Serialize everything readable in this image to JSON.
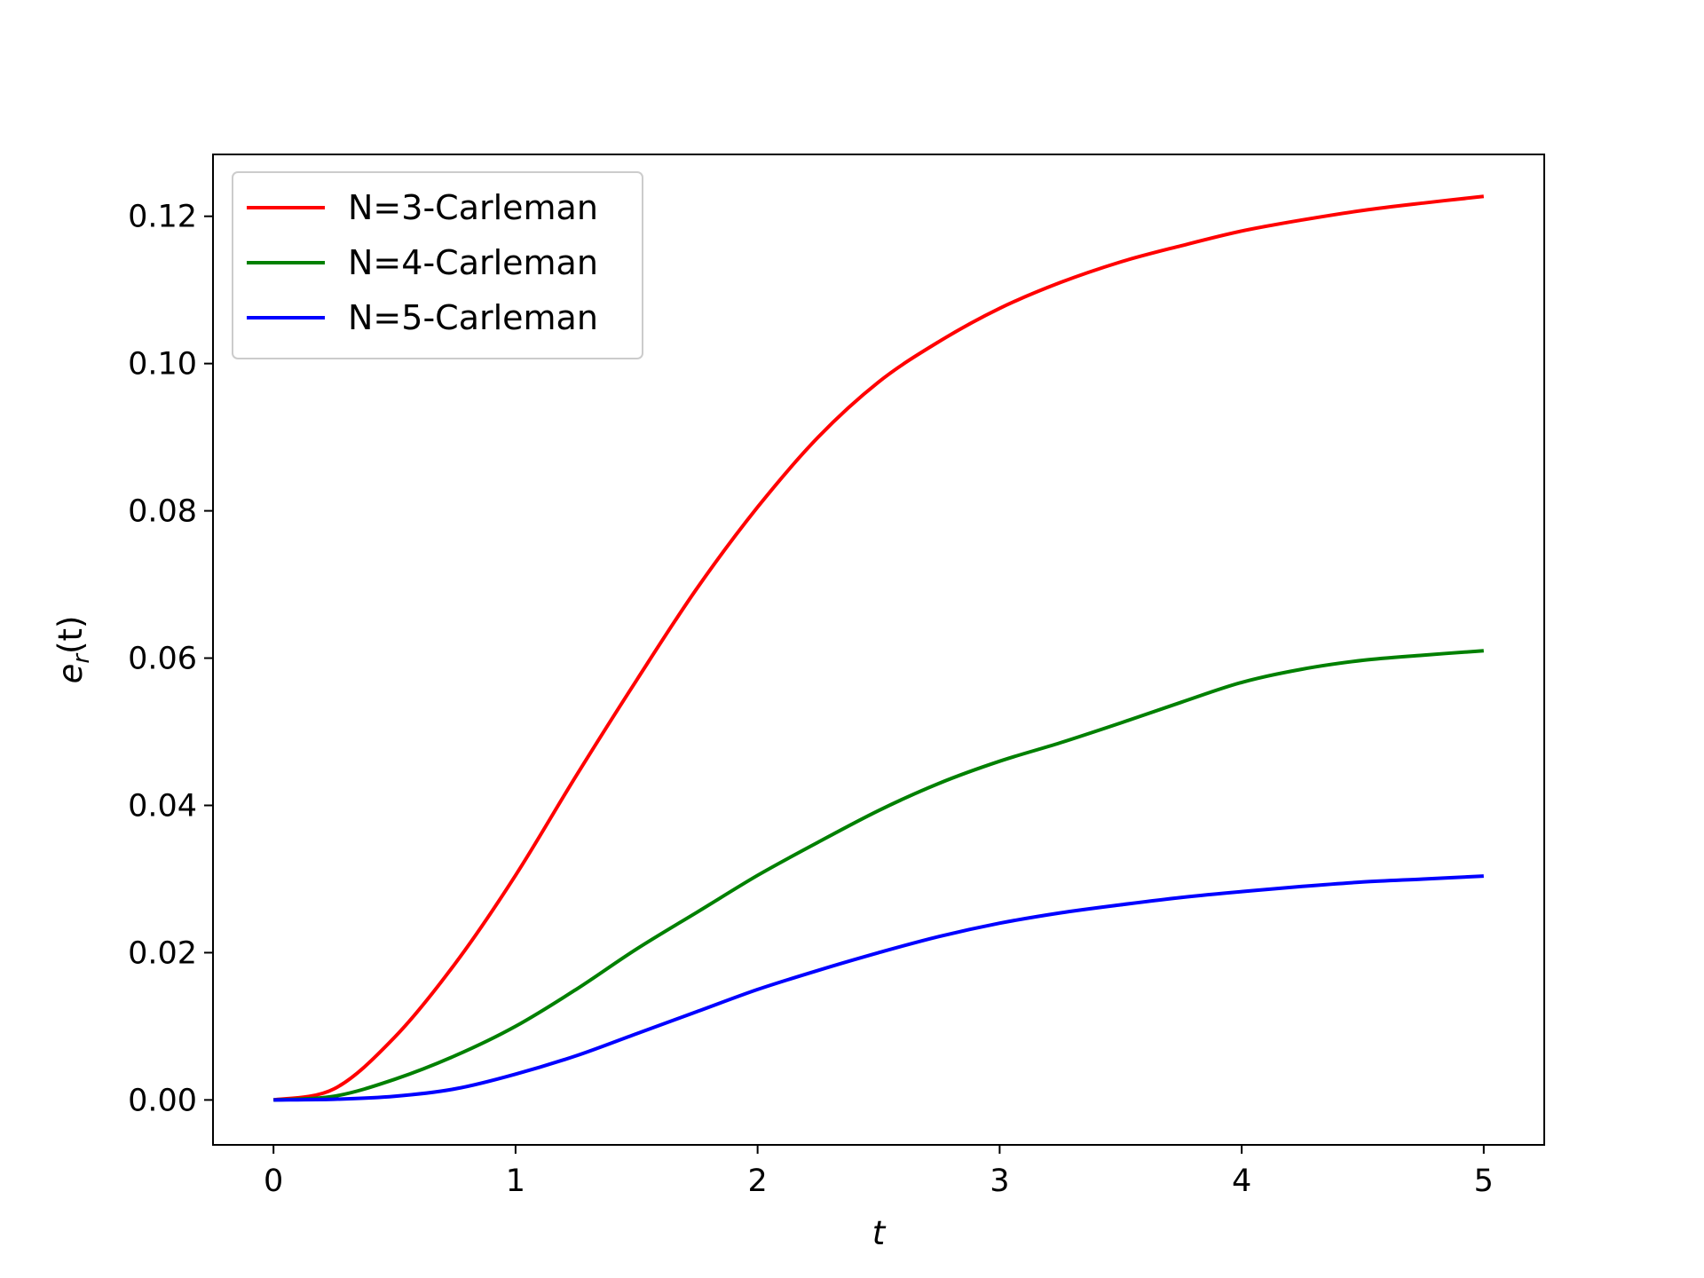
{
  "chart_data": {
    "type": "line",
    "title": "",
    "xlabel": "t",
    "ylabel": {
      "base": "e",
      "sub": "r",
      "rest": "(t)"
    },
    "xlim": [
      -0.25,
      5.25
    ],
    "ylim": [
      -0.0061,
      0.1284
    ],
    "xticks": [
      0,
      1,
      2,
      3,
      4,
      5
    ],
    "xtick_labels": [
      "0",
      "1",
      "2",
      "3",
      "4",
      "5"
    ],
    "yticks": [
      0.0,
      0.02,
      0.04,
      0.06,
      0.08,
      0.1,
      0.12
    ],
    "ytick_labels": [
      "0.00",
      "0.02",
      "0.04",
      "0.06",
      "0.08",
      "0.10",
      "0.12"
    ],
    "grid": false,
    "legend_position": "top-left",
    "series": [
      {
        "name": "N=3-Carleman",
        "color": "#ff0000",
        "x": [
          0,
          0.25,
          0.5,
          0.75,
          1.0,
          1.25,
          1.5,
          1.75,
          2.0,
          2.25,
          2.5,
          2.75,
          3.0,
          3.25,
          3.5,
          3.75,
          4.0,
          4.25,
          4.5,
          4.75,
          5.0
        ],
        "y": [
          0.0,
          0.0015,
          0.0085,
          0.0185,
          0.0305,
          0.044,
          0.057,
          0.0695,
          0.0805,
          0.09,
          0.0975,
          0.103,
          0.1075,
          0.111,
          0.1138,
          0.116,
          0.118,
          0.1195,
          0.1208,
          0.1218,
          0.1227
        ]
      },
      {
        "name": "N=4-Carleman",
        "color": "#008000",
        "x": [
          0,
          0.25,
          0.5,
          0.75,
          1.0,
          1.25,
          1.5,
          1.75,
          2.0,
          2.25,
          2.5,
          2.75,
          3.0,
          3.25,
          3.5,
          3.75,
          4.0,
          4.25,
          4.5,
          4.75,
          5.0
        ],
        "y": [
          0.0,
          0.0005,
          0.0028,
          0.006,
          0.01,
          0.015,
          0.0205,
          0.0255,
          0.0305,
          0.035,
          0.0393,
          0.043,
          0.046,
          0.0485,
          0.0512,
          0.054,
          0.0567,
          0.0585,
          0.0597,
          0.0604,
          0.061
        ]
      },
      {
        "name": "N=5-Carleman",
        "color": "#0000ff",
        "x": [
          0,
          0.25,
          0.5,
          0.75,
          1.0,
          1.25,
          1.5,
          1.75,
          2.0,
          2.25,
          2.5,
          2.75,
          3.0,
          3.25,
          3.5,
          3.75,
          4.0,
          4.25,
          4.5,
          4.75,
          5.0
        ],
        "y": [
          0.0,
          0.0001,
          0.0005,
          0.0015,
          0.0035,
          0.006,
          0.009,
          0.012,
          0.015,
          0.0176,
          0.02,
          0.0222,
          0.024,
          0.0254,
          0.0265,
          0.0275,
          0.0283,
          0.029,
          0.0296,
          0.03,
          0.0304
        ]
      }
    ]
  }
}
